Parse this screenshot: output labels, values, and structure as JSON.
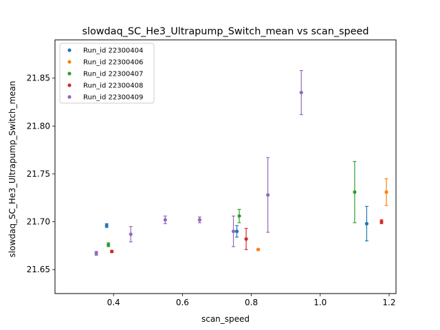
{
  "chart_data": {
    "type": "scatter",
    "title": "slowdaq_SC_He3_Ultrapump_Switch_mean vs scan_speed",
    "xlabel": "scan_speed",
    "ylabel": "slowdaq_SC_He3_Ultrapump_Switch_mean",
    "xlim": [
      0.23,
      1.22
    ],
    "ylim": [
      21.625,
      21.89
    ],
    "xticks": [
      0.4,
      0.6,
      0.8,
      1.0,
      1.2
    ],
    "xtick_labels": [
      "0.4",
      "0.6",
      "0.8",
      "1.0",
      "1.2"
    ],
    "yticks": [
      21.65,
      21.7,
      21.75,
      21.8,
      21.85
    ],
    "ytick_labels": [
      "21.65",
      "21.70",
      "21.75",
      "21.80",
      "21.85"
    ],
    "grid": false,
    "legend_position": "top-left",
    "error_bars": true,
    "series": [
      {
        "name": "Run_id 22300404",
        "color": "#1f77b4",
        "points": [
          {
            "x": 0.38,
            "y": 21.696,
            "err": 0.002
          },
          {
            "x": 0.758,
            "y": 21.69,
            "err": 0.006
          },
          {
            "x": 1.135,
            "y": 21.698,
            "err": 0.018
          }
        ]
      },
      {
        "name": "Run_id 22300406",
        "color": "#ff7f0e",
        "points": [
          {
            "x": 0.82,
            "y": 21.671,
            "err": 0.001
          },
          {
            "x": 1.192,
            "y": 21.731,
            "err": 0.014
          }
        ]
      },
      {
        "name": "Run_id 22300407",
        "color": "#2ca02c",
        "points": [
          {
            "x": 0.385,
            "y": 21.676,
            "err": 0.002
          },
          {
            "x": 0.765,
            "y": 21.706,
            "err": 0.007
          },
          {
            "x": 1.1,
            "y": 21.731,
            "err": 0.032
          }
        ]
      },
      {
        "name": "Run_id 22300408",
        "color": "#d62728",
        "points": [
          {
            "x": 0.395,
            "y": 21.669,
            "err": 0.001
          },
          {
            "x": 0.785,
            "y": 21.682,
            "err": 0.011
          },
          {
            "x": 1.178,
            "y": 21.7,
            "err": 0.002
          }
        ]
      },
      {
        "name": "Run_id 22300409",
        "color": "#9467bd",
        "points": [
          {
            "x": 0.35,
            "y": 21.667,
            "err": 0.002
          },
          {
            "x": 0.45,
            "y": 21.687,
            "err": 0.008
          },
          {
            "x": 0.55,
            "y": 21.702,
            "err": 0.004
          },
          {
            "x": 0.65,
            "y": 21.702,
            "err": 0.003
          },
          {
            "x": 0.748,
            "y": 21.69,
            "err": 0.016
          },
          {
            "x": 0.848,
            "y": 21.728,
            "err": 0.039
          },
          {
            "x": 0.945,
            "y": 21.835,
            "err": 0.023
          }
        ]
      }
    ]
  }
}
